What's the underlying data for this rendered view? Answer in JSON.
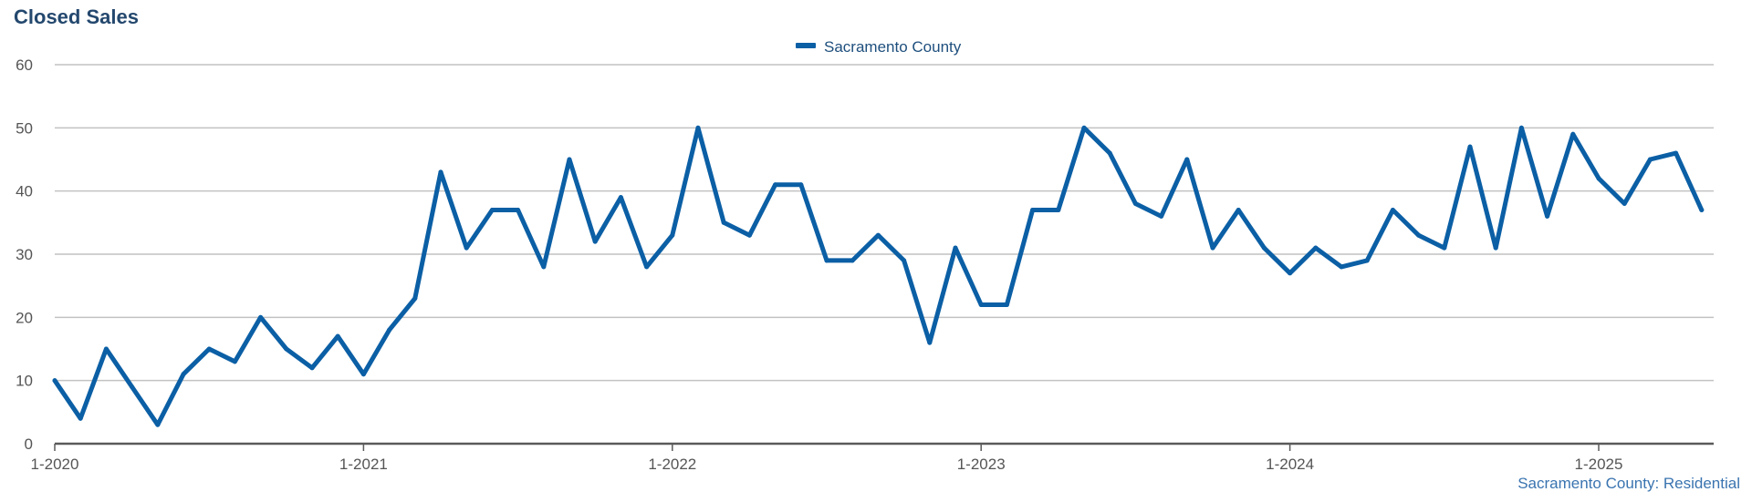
{
  "chart_data": {
    "type": "line",
    "title": "Closed Sales",
    "legend": {
      "position": "top-center"
    },
    "source_note": "Sacramento County: Residential",
    "colors": {
      "series": "#0b5fa5",
      "title": "#24486e",
      "grid": "#c2c2c2",
      "axis": "#5a5a5a"
    },
    "x_ticks": [
      "1-2020",
      "1-2021",
      "1-2022",
      "1-2023",
      "1-2024",
      "1-2025"
    ],
    "y_ticks": [
      0,
      10,
      20,
      30,
      40,
      50,
      60
    ],
    "ylim": [
      0,
      60
    ],
    "x_start": "1-2020",
    "x_end": "5-2025",
    "grid": true,
    "series": [
      {
        "name": "Sacramento County",
        "values": [
          10,
          4,
          15,
          9,
          3,
          11,
          15,
          13,
          20,
          15,
          12,
          17,
          11,
          18,
          23,
          43,
          31,
          37,
          37,
          28,
          45,
          32,
          39,
          28,
          33,
          50,
          35,
          33,
          41,
          41,
          29,
          29,
          33,
          29,
          16,
          31,
          22,
          22,
          37,
          37,
          50,
          46,
          38,
          36,
          45,
          31,
          37,
          31,
          27,
          31,
          28,
          29,
          37,
          33,
          31,
          47,
          31,
          50,
          36,
          49,
          42,
          38,
          45,
          46,
          37
        ]
      }
    ]
  }
}
